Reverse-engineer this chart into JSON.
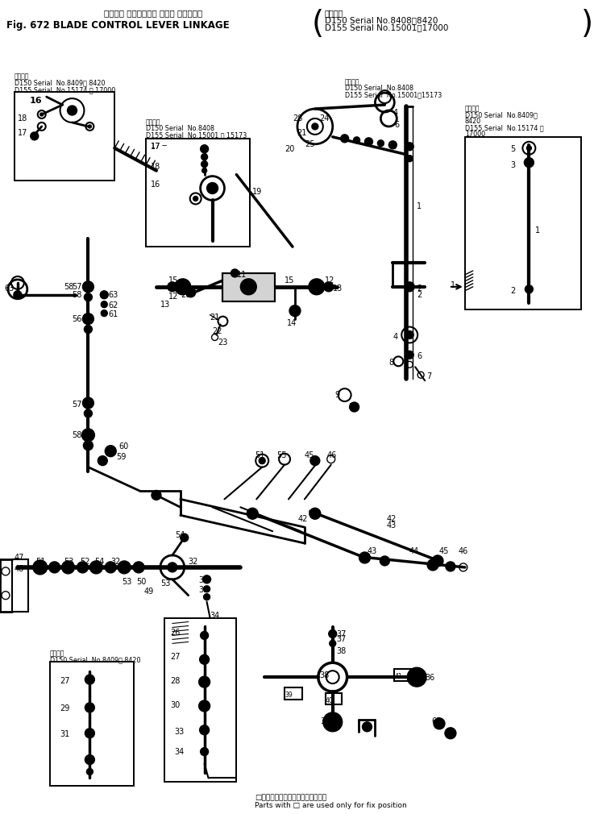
{
  "bg_color": "#ffffff",
  "fig_width": 7.37,
  "fig_height": 10.1,
  "dpi": 100,
  "title_jp": "ブレード コントロール レバー リンケージ",
  "title_en": "Fig. 672 BLADE CONTROL LEVER LINKAGE",
  "serial_title": "適用号機",
  "serial1": "D150 Serial No.8408～8420",
  "serial2": "D155 Serial No.15001～17000",
  "footer_jp": "□印部品は位置決の用てあり部供ず",
  "footer_en": "Parts with □ are used only for fix position",
  "tl_serial1": "D150 Serial  No.8409～ 8420",
  "tl_serial2": "D155 Serial  No.15174 ～ 17000",
  "tl_serial_title": "適用号機",
  "ml_serial_title": "適用号機",
  "ml_serial1": "D150 Serial  No.8408",
  "ml_serial2": "D155 Serial  No.15001 ～ 15173",
  "tr_serial_title": "適用号機",
  "tr_serial1": "D150 Serial  No.8408",
  "tr_serial2": "D155 Serial  No.15001～15173",
  "tr2_serial_title": "適用号機",
  "tr2_serial1": "D150 Serial  No.8409～",
  "tr2_serial2": "8420",
  "tr2_serial3": "D155 Serial  No.15174 ～",
  "tr2_serial4": "17000",
  "bl_serial_title": "適用号機",
  "bl_serial1": "D150 Serial  No.8409～ 8420"
}
